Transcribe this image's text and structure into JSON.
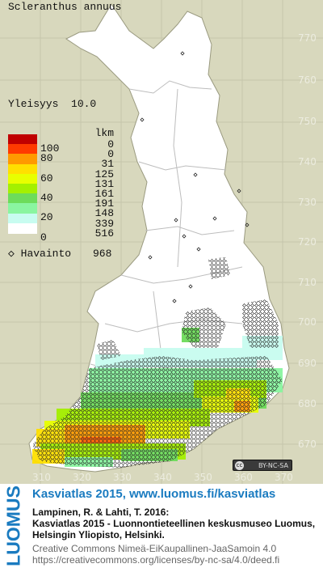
{
  "species_name": "Scleranthus annuus",
  "frequency": {
    "label": "Yleisyys",
    "value": "10.0"
  },
  "legend": {
    "count_header": "lkm",
    "rows": [
      {
        "label": "100",
        "count": "0",
        "color": "#c00000"
      },
      {
        "label": "80",
        "count": "0",
        "color": "#ff3a00"
      },
      {
        "label": "",
        "count": "31",
        "color": "#ff9a00"
      },
      {
        "label": "60",
        "count": "125",
        "color": "#ffe000"
      },
      {
        "label": "",
        "count": "131",
        "color": "#e8ff00"
      },
      {
        "label": "40",
        "count": "161",
        "color": "#a4f000"
      },
      {
        "label": "",
        "count": "191",
        "color": "#6ddc5a"
      },
      {
        "label": "20",
        "count": "148",
        "color": "#8af5a0"
      },
      {
        "label": "",
        "count": "339",
        "color": "#c8fcf0"
      },
      {
        "label": "0",
        "count": "516",
        "color": "#ffffff"
      }
    ]
  },
  "observation": {
    "label": "Havainto",
    "value": "968"
  },
  "grid": {
    "y_labels": [
      "770",
      "760",
      "750",
      "740",
      "730",
      "720",
      "710",
      "700",
      "690",
      "680",
      "670"
    ],
    "x_labels": [
      "310",
      "320",
      "330",
      "340",
      "350",
      "360",
      "370"
    ]
  },
  "license_badge": "BY-NC-SA",
  "footer": {
    "logo": "LUOMUS",
    "title": "Kasviatlas 2015, www.luomus.fi/kasviatlas",
    "citation_1": "Lampinen, R. & Lahti, T. 2016:",
    "citation_2": "Kasviatlas 2015 - Luonnontieteellinen keskusmuseo Luomus,",
    "citation_3": "Helsingin Yliopisto, Helsinki.",
    "license_1": "Creative Commons Nimeä-EiKaupallinen-JaaSamoin 4.0",
    "license_2": "https://creativecommons.org/licenses/by-nc-sa/4.0/deed.fi"
  }
}
